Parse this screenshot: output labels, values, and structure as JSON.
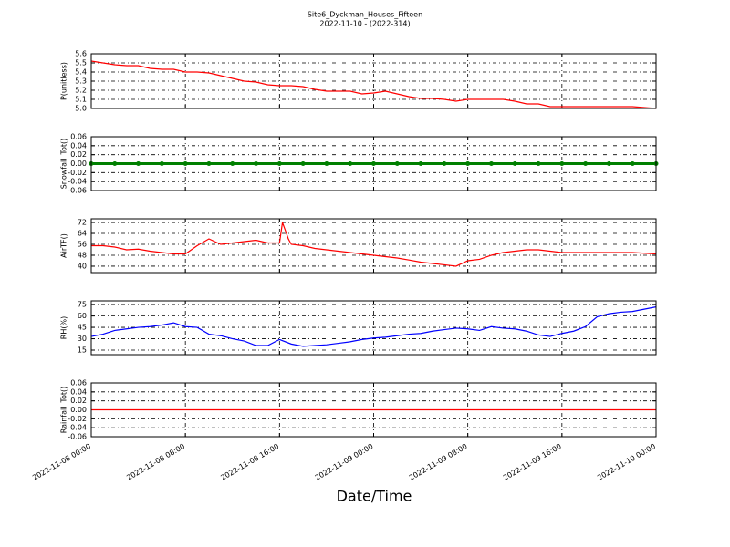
{
  "chart_data": [
    {
      "type": "line",
      "title": "Site6_Dyckman_Houses_Fifteen",
      "subtitle": "2022-11-10 - (2022-314)",
      "ylabel": "P(unitless)",
      "xlim": [
        "2022-11-08 00:00",
        "2022-11-10 00:00"
      ],
      "ylim": [
        5.0,
        5.6
      ],
      "yticks": [
        {
          "value": 5,
          "label": "5.0"
        },
        5.1,
        5.2,
        5.3,
        5.4,
        5.5,
        5.6
      ],
      "grid": true,
      "x": [
        "2022-11-08 00:00",
        "2022-11-08 01:00",
        "2022-11-08 02:00",
        "2022-11-08 03:00",
        "2022-11-08 04:00",
        "2022-11-08 05:00",
        "2022-11-08 06:00",
        "2022-11-08 07:00",
        "2022-11-08 08:00",
        "2022-11-08 09:00",
        "2022-11-08 10:00",
        "2022-11-08 11:00",
        "2022-11-08 12:00",
        "2022-11-08 13:00",
        "2022-11-08 14:00",
        "2022-11-08 15:00",
        "2022-11-08 16:00",
        "2022-11-08 17:00",
        "2022-11-08 18:00",
        "2022-11-08 19:00",
        "2022-11-08 20:00",
        "2022-11-08 21:00",
        "2022-11-08 22:00",
        "2022-11-08 23:00",
        "2022-11-09 00:00",
        "2022-11-09 01:00",
        "2022-11-09 02:00",
        "2022-11-09 03:00",
        "2022-11-09 04:00",
        "2022-11-09 05:00",
        "2022-11-09 06:00",
        "2022-11-09 07:00",
        "2022-11-09 08:00",
        "2022-11-09 09:00",
        "2022-11-09 10:00",
        "2022-11-09 11:00",
        "2022-11-09 12:00",
        "2022-11-09 13:00",
        "2022-11-09 14:00",
        "2022-11-09 15:00",
        "2022-11-09 16:00",
        "2022-11-09 17:00",
        "2022-11-09 18:00",
        "2022-11-09 19:00",
        "2022-11-09 20:00",
        "2022-11-09 21:00",
        "2022-11-09 22:00",
        "2022-11-09 23:00",
        "2022-11-10 00:00"
      ],
      "series": [
        {
          "color": "#ff0000",
          "values": [
            5.52,
            5.5,
            5.48,
            5.47,
            5.47,
            5.44,
            5.43,
            5.43,
            5.4,
            5.4,
            5.39,
            5.36,
            5.33,
            5.3,
            5.29,
            5.26,
            5.25,
            5.25,
            5.24,
            5.21,
            5.19,
            5.19,
            5.19,
            5.16,
            5.17,
            5.19,
            5.16,
            5.13,
            5.11,
            5.11,
            5.1,
            5.08,
            5.1,
            5.1,
            5.1,
            5.1,
            5.08,
            5.05,
            5.05,
            5.02,
            5.02,
            5.02,
            5.02,
            5.02,
            5.02,
            5.02,
            5.02,
            5.01,
            5.0
          ]
        }
      ]
    },
    {
      "type": "line",
      "ylabel": "Snowfall_Tot()",
      "markers": true,
      "xlim": [
        "2022-11-08 00:00",
        "2022-11-10 00:00"
      ],
      "ylim": [
        -0.06,
        0.06
      ],
      "yticks": [
        -0.06,
        -0.04,
        -0.02,
        {
          "value": 0,
          "label": "0.00"
        },
        0.02,
        0.04,
        0.06
      ],
      "grid": true,
      "x": [
        "2022-11-08 00:00",
        "2022-11-08 02:00",
        "2022-11-08 04:00",
        "2022-11-08 06:00",
        "2022-11-08 08:00",
        "2022-11-08 10:00",
        "2022-11-08 12:00",
        "2022-11-08 14:00",
        "2022-11-08 16:00",
        "2022-11-08 18:00",
        "2022-11-08 20:00",
        "2022-11-08 22:00",
        "2022-11-09 00:00",
        "2022-11-09 02:00",
        "2022-11-09 04:00",
        "2022-11-09 06:00",
        "2022-11-09 08:00",
        "2022-11-09 10:00",
        "2022-11-09 12:00",
        "2022-11-09 14:00",
        "2022-11-09 16:00",
        "2022-11-09 18:00",
        "2022-11-09 20:00",
        "2022-11-09 22:00",
        "2022-11-10 00:00"
      ],
      "series": [
        {
          "color": "#008000",
          "values": [
            0,
            0,
            0,
            0,
            0,
            0,
            0,
            0,
            0,
            0,
            0,
            0,
            0,
            0,
            0,
            0,
            0,
            0,
            0,
            0,
            0,
            0,
            0,
            0,
            0
          ]
        }
      ]
    },
    {
      "type": "line",
      "ylabel": "AirTF()",
      "xlim": [
        "2022-11-08 00:00",
        "2022-11-10 00:00"
      ],
      "ylim": [
        35.3,
        74.7
      ],
      "yticks": [
        40,
        48,
        56,
        64,
        72
      ],
      "grid": true,
      "x": [
        "2022-11-08 00:00",
        "2022-11-08 01:00",
        "2022-11-08 02:00",
        "2022-11-08 03:00",
        "2022-11-08 04:00",
        "2022-11-08 05:00",
        "2022-11-08 06:00",
        "2022-11-08 07:00",
        "2022-11-08 08:00",
        "2022-11-08 09:00",
        "2022-11-08 10:00",
        "2022-11-08 11:00",
        "2022-11-08 12:00",
        "2022-11-08 13:00",
        "2022-11-08 14:00",
        "2022-11-08 15:00",
        "2022-11-08 16:00",
        "2022-11-08 16:15",
        "2022-11-08 16:45",
        "2022-11-08 17:00",
        "2022-11-08 18:00",
        "2022-11-08 19:00",
        "2022-11-08 20:00",
        "2022-11-08 21:00",
        "2022-11-08 22:00",
        "2022-11-08 23:00",
        "2022-11-09 00:00",
        "2022-11-09 01:00",
        "2022-11-09 02:00",
        "2022-11-09 03:00",
        "2022-11-09 04:00",
        "2022-11-09 05:00",
        "2022-11-09 06:00",
        "2022-11-09 07:00",
        "2022-11-09 08:00",
        "2022-11-09 09:00",
        "2022-11-09 10:00",
        "2022-11-09 11:00",
        "2022-11-09 12:00",
        "2022-11-09 13:00",
        "2022-11-09 14:00",
        "2022-11-09 15:00",
        "2022-11-09 16:00",
        "2022-11-09 17:00",
        "2022-11-09 18:00",
        "2022-11-09 19:00",
        "2022-11-09 20:00",
        "2022-11-09 21:00",
        "2022-11-09 22:00",
        "2022-11-09 23:00",
        "2022-11-10 00:00"
      ],
      "series": [
        {
          "color": "#ff0000",
          "values": [
            55,
            55,
            54,
            52,
            52.5,
            51,
            50,
            49,
            49,
            55,
            60,
            56,
            57,
            58,
            59,
            57,
            57,
            72,
            60,
            56,
            55,
            53,
            52,
            51,
            50,
            49,
            48,
            47,
            46,
            44.5,
            43,
            42,
            41,
            40,
            44,
            45,
            48,
            50,
            51,
            52,
            52,
            51,
            50,
            50,
            50,
            50,
            50,
            50,
            50,
            49.5,
            49
          ]
        }
      ]
    },
    {
      "type": "line",
      "ylabel": "RH(%)",
      "xlim": [
        "2022-11-08 00:00",
        "2022-11-10 00:00"
      ],
      "ylim": [
        9,
        80
      ],
      "yticks": [
        15,
        30,
        45,
        60,
        75
      ],
      "grid": true,
      "x": [
        "2022-11-08 00:00",
        "2022-11-08 01:00",
        "2022-11-08 02:00",
        "2022-11-08 03:00",
        "2022-11-08 04:00",
        "2022-11-08 05:00",
        "2022-11-08 06:00",
        "2022-11-08 07:00",
        "2022-11-08 08:00",
        "2022-11-08 09:00",
        "2022-11-08 10:00",
        "2022-11-08 11:00",
        "2022-11-08 12:00",
        "2022-11-08 13:00",
        "2022-11-08 14:00",
        "2022-11-08 15:00",
        "2022-11-08 16:00",
        "2022-11-08 17:00",
        "2022-11-08 18:00",
        "2022-11-08 19:00",
        "2022-11-08 20:00",
        "2022-11-08 21:00",
        "2022-11-08 22:00",
        "2022-11-08 23:00",
        "2022-11-09 00:00",
        "2022-11-09 01:00",
        "2022-11-09 02:00",
        "2022-11-09 03:00",
        "2022-11-09 04:00",
        "2022-11-09 05:00",
        "2022-11-09 06:00",
        "2022-11-09 07:00",
        "2022-11-09 08:00",
        "2022-11-09 09:00",
        "2022-11-09 10:00",
        "2022-11-09 11:00",
        "2022-11-09 12:00",
        "2022-11-09 13:00",
        "2022-11-09 14:00",
        "2022-11-09 15:00",
        "2022-11-09 16:00",
        "2022-11-09 17:00",
        "2022-11-09 18:00",
        "2022-11-09 19:00",
        "2022-11-09 20:00",
        "2022-11-09 21:00",
        "2022-11-09 22:00",
        "2022-11-09 23:00",
        "2022-11-10 00:00"
      ],
      "series": [
        {
          "color": "#0000ff",
          "values": [
            33,
            36,
            41,
            43,
            45,
            46,
            48,
            51,
            46,
            45,
            36,
            34,
            30,
            27,
            21,
            21,
            29,
            23,
            20,
            21,
            22,
            24,
            26,
            29,
            31,
            32,
            34,
            36,
            37,
            40,
            42,
            44,
            43,
            41,
            46,
            44,
            43,
            40,
            35,
            33,
            37,
            40,
            46,
            59,
            63,
            65,
            66,
            69,
            72
          ]
        }
      ]
    },
    {
      "type": "line",
      "ylabel": "Rainfall_Tot()",
      "xlabel": "Date/Time",
      "xlim": [
        "2022-11-08 00:00",
        "2022-11-10 00:00"
      ],
      "xticks": [
        "2022-11-08 00:00",
        "2022-11-08 08:00",
        "2022-11-08 16:00",
        "2022-11-09 00:00",
        "2022-11-09 08:00",
        "2022-11-09 16:00",
        "2022-11-10 00:00"
      ],
      "ylim": [
        -0.06,
        0.06
      ],
      "yticks": [
        -0.06,
        -0.04,
        -0.02,
        {
          "value": 0,
          "label": "0.00"
        },
        0.02,
        0.04,
        0.06
      ],
      "grid": true,
      "x": [
        "2022-11-08 00:00",
        "2022-11-08 04:00",
        "2022-11-08 08:00",
        "2022-11-08 12:00",
        "2022-11-08 16:00",
        "2022-11-08 20:00",
        "2022-11-09 00:00",
        "2022-11-09 04:00",
        "2022-11-09 08:00",
        "2022-11-09 12:00",
        "2022-11-09 16:00",
        "2022-11-09 20:00",
        "2022-11-10 00:00"
      ],
      "series": [
        {
          "color": "#ff0000",
          "values": [
            0,
            0,
            0,
            0,
            0,
            0,
            0,
            0,
            0,
            0,
            0,
            0,
            0
          ]
        }
      ]
    }
  ]
}
